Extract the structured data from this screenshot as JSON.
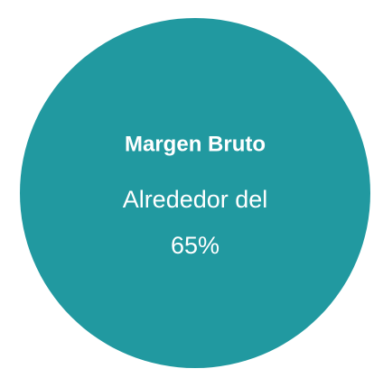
{
  "card": {
    "title": "Margen Bruto",
    "lines": [
      "Alrededor del",
      "65%"
    ]
  }
}
